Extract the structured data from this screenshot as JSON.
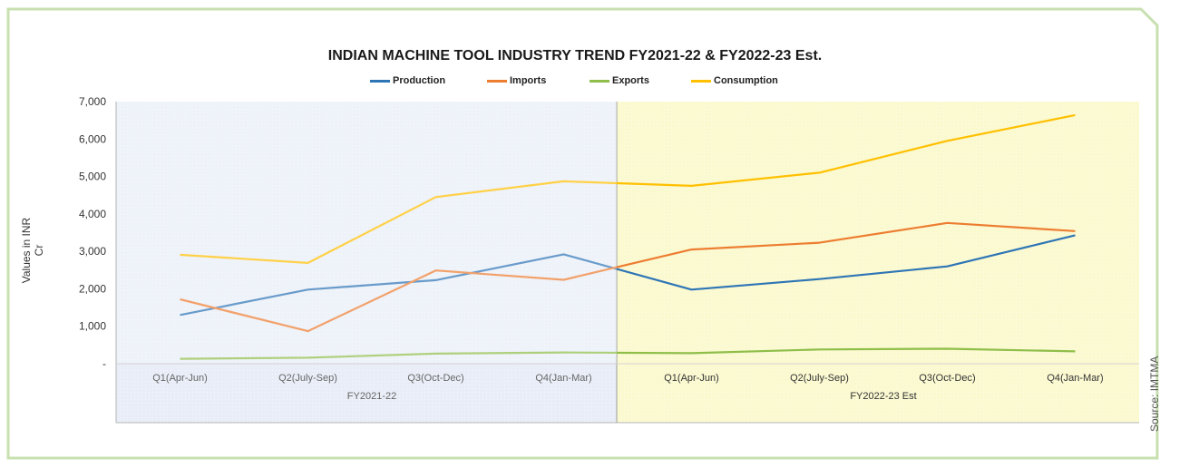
{
  "source": "Source: IMTMA",
  "colors": {
    "frame": "#c8e0b0",
    "panel_fy22": "#e8edf7",
    "panel_fy23": "#fbf9cf",
    "production": "#2e75b6",
    "imports": "#ed7d31",
    "exports": "#8fbe4a",
    "consumption": "#ffc000"
  },
  "chart_data": {
    "type": "line",
    "title": "INDIAN MACHINE TOOL INDUSTRY TREND FY2021-22 & FY2022-23 Est.",
    "ylabel": "Values in INR Cr",
    "ylim": [
      0,
      7000
    ],
    "yticks": [
      "-",
      "1,000",
      "2,000",
      "3,000",
      "4,000",
      "5,000",
      "6,000",
      "7,000"
    ],
    "categories": [
      "Q1(Apr-Jun)",
      "Q2(July-Sep)",
      "Q3(Oct-Dec)",
      "Q4(Jan-Mar)",
      "Q1(Apr-Jun)",
      "Q2(July-Sep)",
      "Q3(Oct-Dec)",
      "Q4(Jan-Mar)"
    ],
    "groups": [
      {
        "label": "FY2021-22",
        "count": 4
      },
      {
        "label": "FY2022-23 Est",
        "count": 4
      }
    ],
    "grid": false,
    "legend_position": "top",
    "series": [
      {
        "name": "Production",
        "color": "#2e75b6",
        "values": [
          1300,
          1980,
          2230,
          2920,
          1980,
          2260,
          2600,
          3430
        ]
      },
      {
        "name": "Imports",
        "color": "#ed7d31",
        "values": [
          1720,
          870,
          2490,
          2240,
          3050,
          3230,
          3760,
          3540
        ]
      },
      {
        "name": "Exports",
        "color": "#8fbe4a",
        "values": [
          130,
          160,
          270,
          300,
          280,
          380,
          400,
          330
        ]
      },
      {
        "name": "Consumption",
        "color": "#ffc000",
        "values": [
          2910,
          2690,
          4450,
          4870,
          4750,
          5100,
          5950,
          6640
        ]
      }
    ]
  }
}
